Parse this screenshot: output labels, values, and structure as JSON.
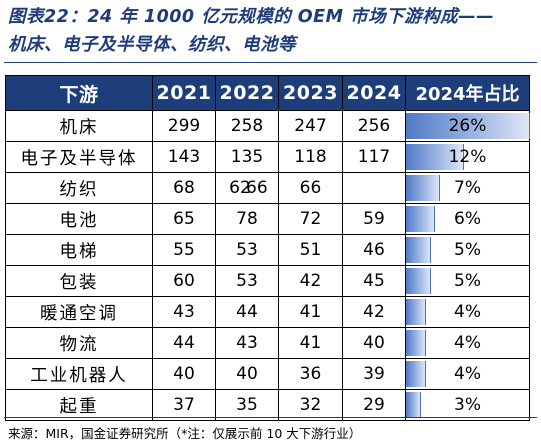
{
  "title": {
    "line1": "图表22：24 年 1000 亿元规模的 OEM 市场下游构成——",
    "line2": "机床、电子及半导体、纺织、电池等"
  },
  "table": {
    "headers": [
      "下游",
      "2021",
      "2022",
      "2023",
      "2024",
      "2024年占比"
    ],
    "rows": [
      {
        "name": "机床",
        "y2021": "299",
        "y2022": "258",
        "y2023": "247",
        "y2024": "256",
        "share": "26%",
        "share_value": 26
      },
      {
        "name": "电子及半导体",
        "y2021": "143",
        "y2022": "135",
        "y2023": "118",
        "y2024": "117",
        "share": "12%",
        "share_value": 12
      },
      {
        "name": "纺织",
        "y2021": "68",
        "y2022": "62",
        "y2022_overlap": "66",
        "y2023": "66",
        "y2024": "",
        "share": "7%",
        "share_value": 7
      },
      {
        "name": "电池",
        "y2021": "65",
        "y2022": "78",
        "y2023": "72",
        "y2024": "59",
        "share": "6%",
        "share_value": 6
      },
      {
        "name": "电梯",
        "y2021": "55",
        "y2022": "53",
        "y2023": "51",
        "y2024": "46",
        "share": "5%",
        "share_value": 5
      },
      {
        "name": "包装",
        "y2021": "60",
        "y2022": "53",
        "y2023": "42",
        "y2024": "45",
        "share": "5%",
        "share_value": 5
      },
      {
        "name": "暖通空调",
        "y2021": "43",
        "y2022": "44",
        "y2023": "41",
        "y2024": "42",
        "share": "4%",
        "share_value": 4
      },
      {
        "name": "物流",
        "y2021": "44",
        "y2022": "43",
        "y2023": "41",
        "y2024": "40",
        "share": "4%",
        "share_value": 4
      },
      {
        "name": "工业机器人",
        "y2021": "40",
        "y2022": "40",
        "y2023": "36",
        "y2024": "39",
        "share": "4%",
        "share_value": 4
      },
      {
        "name": "起重",
        "y2021": "37",
        "y2022": "35",
        "y2023": "32",
        "y2024": "29",
        "share": "3%",
        "share_value": 3
      }
    ]
  },
  "source": "来源：MIR，国金证券研究所（*注：仅展示前 10 大下游行业）",
  "colors": {
    "header_bg": "#1e3d7b",
    "title_color": "#1f3c7a",
    "bar_color": "#4f79c6"
  }
}
